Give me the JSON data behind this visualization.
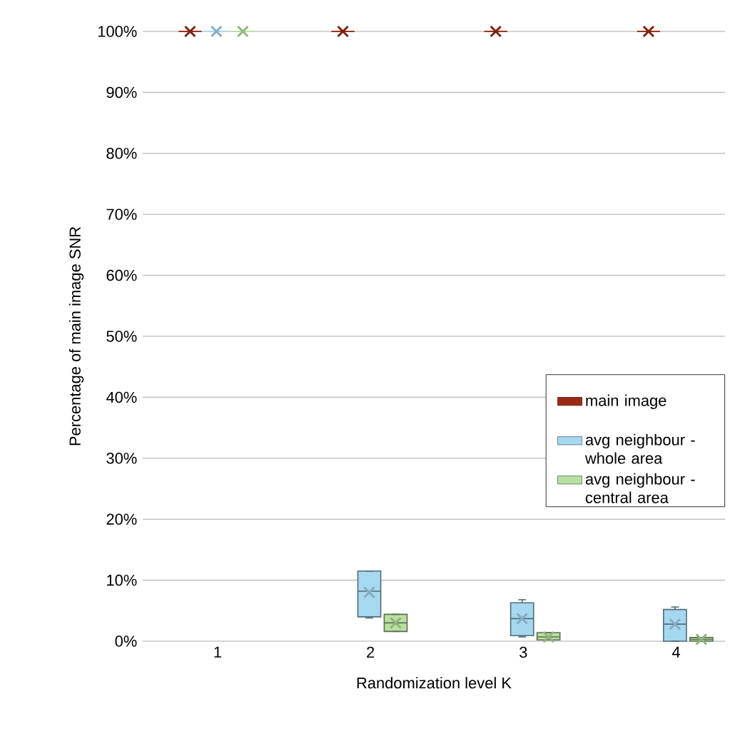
{
  "chart_data": {
    "type": "box",
    "xlabel": "Randomization level K",
    "ylabel": "Percentage of main image SNR",
    "categories": [
      "1",
      "2",
      "3",
      "4"
    ],
    "ylim": [
      0,
      100
    ],
    "yticks": [
      {
        "value": 0,
        "label": "0%"
      },
      {
        "value": 10,
        "label": "10%"
      },
      {
        "value": 20,
        "label": "20%"
      },
      {
        "value": 30,
        "label": "30%"
      },
      {
        "value": 40,
        "label": "40%"
      },
      {
        "value": 50,
        "label": "50%"
      },
      {
        "value": 60,
        "label": "60%"
      },
      {
        "value": 70,
        "label": "70%"
      },
      {
        "value": 80,
        "label": "80%"
      },
      {
        "value": 90,
        "label": "90%"
      },
      {
        "value": 100,
        "label": "100%"
      }
    ],
    "grid": "y",
    "legend": "right",
    "marker": "cross",
    "series": [
      {
        "name": "main image",
        "color": "#9b2a14",
        "boxes": [
          {
            "low": 100,
            "q1": 100,
            "median": 100,
            "q3": 100,
            "high": 100,
            "mean": 100
          },
          {
            "low": 100,
            "q1": 100,
            "median": 100,
            "q3": 100,
            "high": 100,
            "mean": 100
          },
          {
            "low": 100,
            "q1": 100,
            "median": 100,
            "q3": 100,
            "high": 100,
            "mean": 100
          },
          {
            "low": 100,
            "q1": 100,
            "median": 100,
            "q3": 100,
            "high": 100,
            "mean": 100
          }
        ]
      },
      {
        "name": "avg neighbour - whole area",
        "color": "#a6d8ef",
        "boxes": [
          {
            "low": 100,
            "q1": 100,
            "median": 100,
            "q3": 100,
            "high": 100,
            "mean": 100
          },
          {
            "low": 3.8,
            "q1": 4.0,
            "median": 8.2,
            "q3": 11.5,
            "high": 11.5,
            "mean": 8.0
          },
          {
            "low": 0.7,
            "q1": 0.9,
            "median": 3.7,
            "q3": 6.3,
            "high": 6.8,
            "mean": 3.7
          },
          {
            "low": 0,
            "q1": 0,
            "median": 2.8,
            "q3": 5.2,
            "high": 5.6,
            "mean": 2.8
          }
        ]
      },
      {
        "name": "avg neighbour - central area",
        "color": "#b8e0a0",
        "boxes": [
          {
            "low": 100,
            "q1": 100,
            "median": 100,
            "q3": 100,
            "high": 100,
            "mean": 100
          },
          {
            "low": 1.6,
            "q1": 1.6,
            "median": 3.0,
            "q3": 4.4,
            "high": 4.4,
            "mean": 3.0
          },
          {
            "low": 0.2,
            "q1": 0.2,
            "median": 0.7,
            "q3": 1.4,
            "high": 1.4,
            "mean": 0.7
          },
          {
            "low": 0,
            "q1": 0,
            "median": 0.3,
            "q3": 0.6,
            "high": 0.6,
            "mean": 0.3
          }
        ]
      }
    ]
  }
}
